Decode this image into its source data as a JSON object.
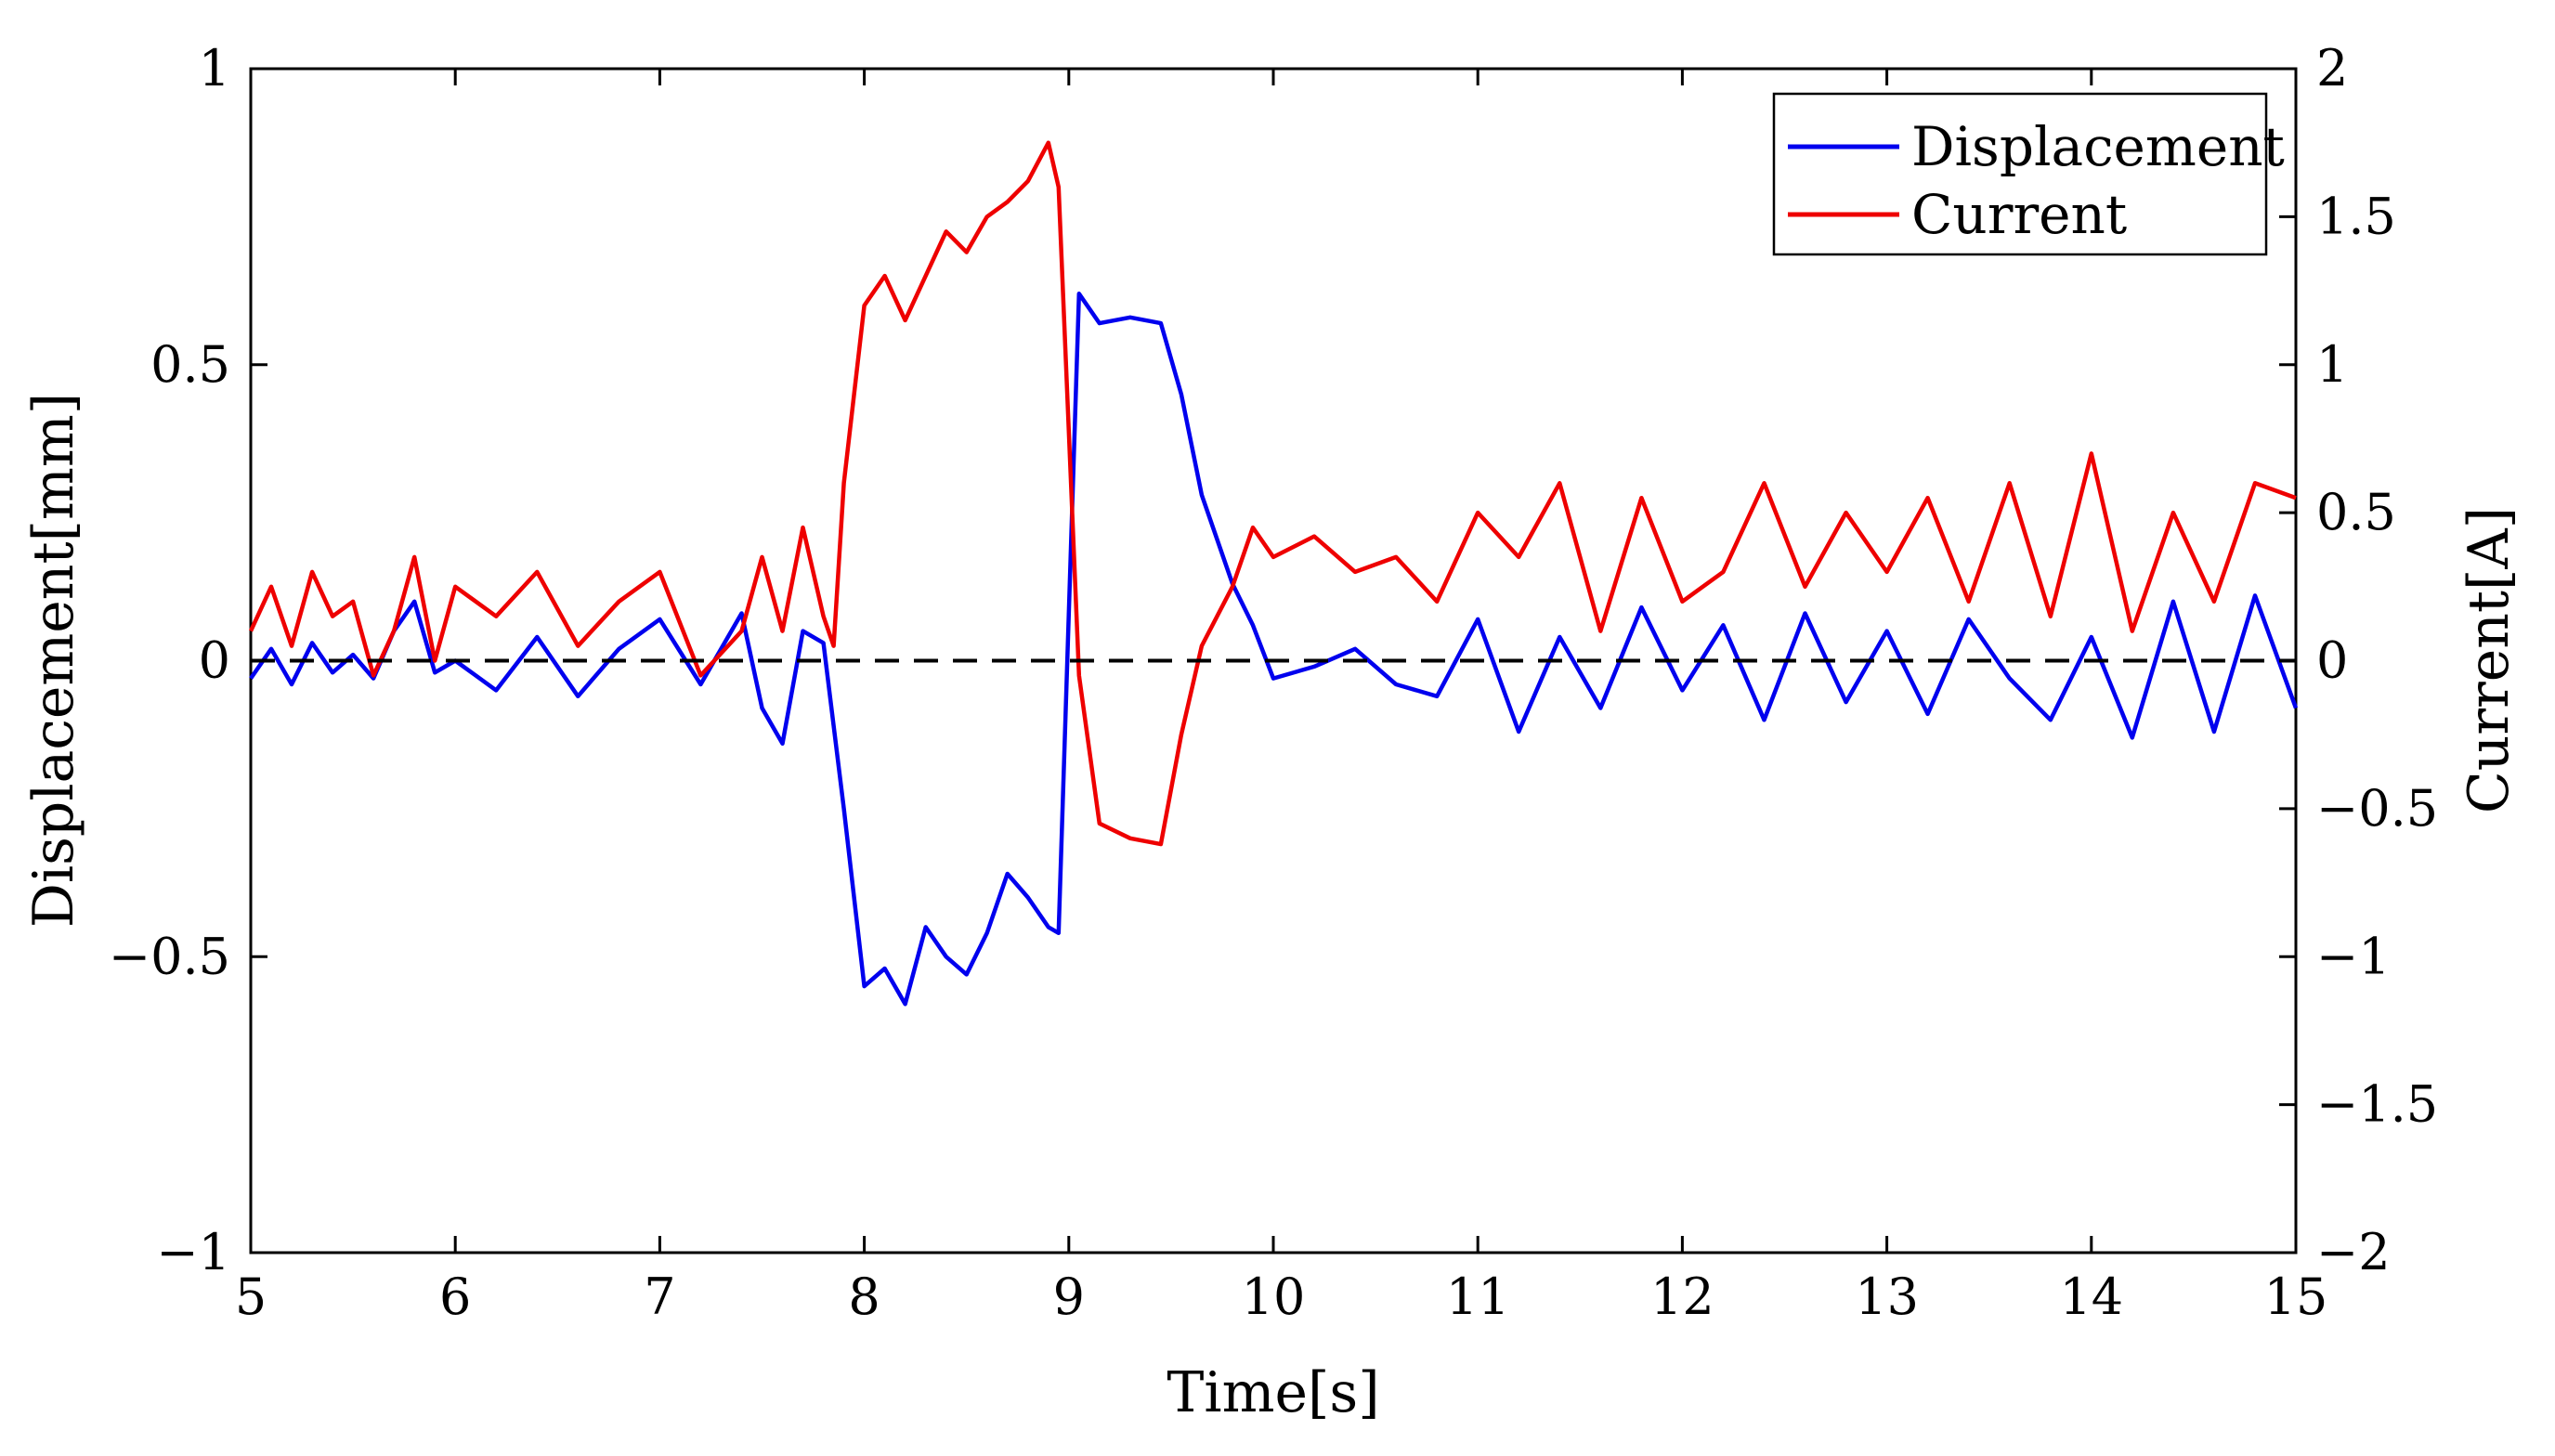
{
  "chart_data": {
    "type": "line",
    "title": "",
    "xlabel": "Time[s]",
    "ylabel_left": "Displacement[mm]",
    "ylabel_right": "Current[A]",
    "xlim": [
      5,
      15
    ],
    "ylim_left": [
      -1,
      1
    ],
    "ylim_right": [
      -2,
      2
    ],
    "x_ticks": [
      5,
      6,
      7,
      8,
      9,
      10,
      11,
      12,
      13,
      14,
      15
    ],
    "x_tick_labels": [
      "5",
      "6",
      "7",
      "8",
      "9",
      "10",
      "11",
      "12",
      "13",
      "14",
      "15"
    ],
    "y_left_ticks": [
      -1,
      -0.5,
      0,
      0.5,
      1
    ],
    "y_left_tick_labels": [
      "−1",
      "−0.5",
      "0",
      "0.5",
      "1"
    ],
    "y_right_ticks": [
      -2,
      -1.5,
      -1,
      -0.5,
      0,
      0.5,
      1,
      1.5,
      2
    ],
    "y_right_tick_labels": [
      "−2",
      "−1.5",
      "−1",
      "−0.5",
      "0",
      "0.5",
      "1",
      "1.5",
      "2"
    ],
    "grid": false,
    "legend_position": "top-right",
    "reference_line": {
      "axis": "left",
      "y": 0,
      "style": "dashed",
      "color": "#000000"
    },
    "series": [
      {
        "name": "Displacement",
        "axis": "left",
        "color": "#0000ee",
        "x": [
          5.0,
          5.1,
          5.2,
          5.3,
          5.4,
          5.5,
          5.6,
          5.7,
          5.8,
          5.9,
          6.0,
          6.2,
          6.4,
          6.6,
          6.8,
          7.0,
          7.2,
          7.4,
          7.5,
          7.6,
          7.7,
          7.8,
          7.9,
          8.0,
          8.1,
          8.2,
          8.3,
          8.4,
          8.5,
          8.6,
          8.7,
          8.8,
          8.9,
          8.95,
          9.05,
          9.15,
          9.3,
          9.45,
          9.55,
          9.65,
          9.8,
          9.9,
          10.0,
          10.2,
          10.4,
          10.6,
          10.8,
          11.0,
          11.2,
          11.4,
          11.6,
          11.8,
          12.0,
          12.2,
          12.4,
          12.6,
          12.8,
          13.0,
          13.2,
          13.4,
          13.6,
          13.8,
          14.0,
          14.2,
          14.4,
          14.6,
          14.8,
          15.0
        ],
        "values": [
          -0.03,
          0.02,
          -0.04,
          0.03,
          -0.02,
          0.01,
          -0.03,
          0.05,
          0.1,
          -0.02,
          0.0,
          -0.05,
          0.04,
          -0.06,
          0.02,
          0.07,
          -0.04,
          0.08,
          -0.08,
          -0.14,
          0.05,
          0.03,
          -0.25,
          -0.55,
          -0.52,
          -0.58,
          -0.45,
          -0.5,
          -0.53,
          -0.46,
          -0.36,
          -0.4,
          -0.45,
          -0.46,
          0.62,
          0.57,
          0.58,
          0.57,
          0.45,
          0.28,
          0.13,
          0.06,
          -0.03,
          -0.01,
          0.02,
          -0.04,
          -0.06,
          0.07,
          -0.12,
          0.04,
          -0.08,
          0.09,
          -0.05,
          0.06,
          -0.1,
          0.08,
          -0.07,
          0.05,
          -0.09,
          0.07,
          -0.03,
          -0.1,
          0.04,
          -0.13,
          0.1,
          -0.12,
          0.11,
          -0.08
        ]
      },
      {
        "name": "Current",
        "axis": "right",
        "color": "#ee0000",
        "x": [
          5.0,
          5.1,
          5.2,
          5.3,
          5.4,
          5.5,
          5.6,
          5.7,
          5.8,
          5.9,
          6.0,
          6.2,
          6.4,
          6.6,
          6.8,
          7.0,
          7.2,
          7.4,
          7.5,
          7.6,
          7.7,
          7.8,
          7.85,
          7.9,
          8.0,
          8.1,
          8.2,
          8.3,
          8.4,
          8.5,
          8.6,
          8.7,
          8.8,
          8.9,
          8.95,
          9.05,
          9.15,
          9.3,
          9.45,
          9.55,
          9.65,
          9.8,
          9.9,
          10.0,
          10.2,
          10.4,
          10.6,
          10.8,
          11.0,
          11.2,
          11.4,
          11.6,
          11.8,
          12.0,
          12.2,
          12.4,
          12.6,
          12.8,
          13.0,
          13.2,
          13.4,
          13.6,
          13.8,
          14.0,
          14.2,
          14.4,
          14.6,
          14.8,
          15.0
        ],
        "values": [
          0.1,
          0.25,
          0.05,
          0.3,
          0.15,
          0.2,
          -0.05,
          0.1,
          0.35,
          0.0,
          0.25,
          0.15,
          0.3,
          0.05,
          0.2,
          0.3,
          -0.05,
          0.1,
          0.35,
          0.1,
          0.45,
          0.15,
          0.05,
          0.6,
          1.2,
          1.3,
          1.15,
          1.3,
          1.45,
          1.38,
          1.5,
          1.55,
          1.62,
          1.75,
          1.6,
          -0.05,
          -0.55,
          -0.6,
          -0.62,
          -0.25,
          0.05,
          0.25,
          0.45,
          0.35,
          0.42,
          0.3,
          0.35,
          0.2,
          0.5,
          0.35,
          0.6,
          0.1,
          0.55,
          0.2,
          0.3,
          0.6,
          0.25,
          0.5,
          0.3,
          0.55,
          0.2,
          0.6,
          0.15,
          0.7,
          0.1,
          0.5,
          0.2,
          0.6,
          0.55
        ]
      }
    ]
  }
}
